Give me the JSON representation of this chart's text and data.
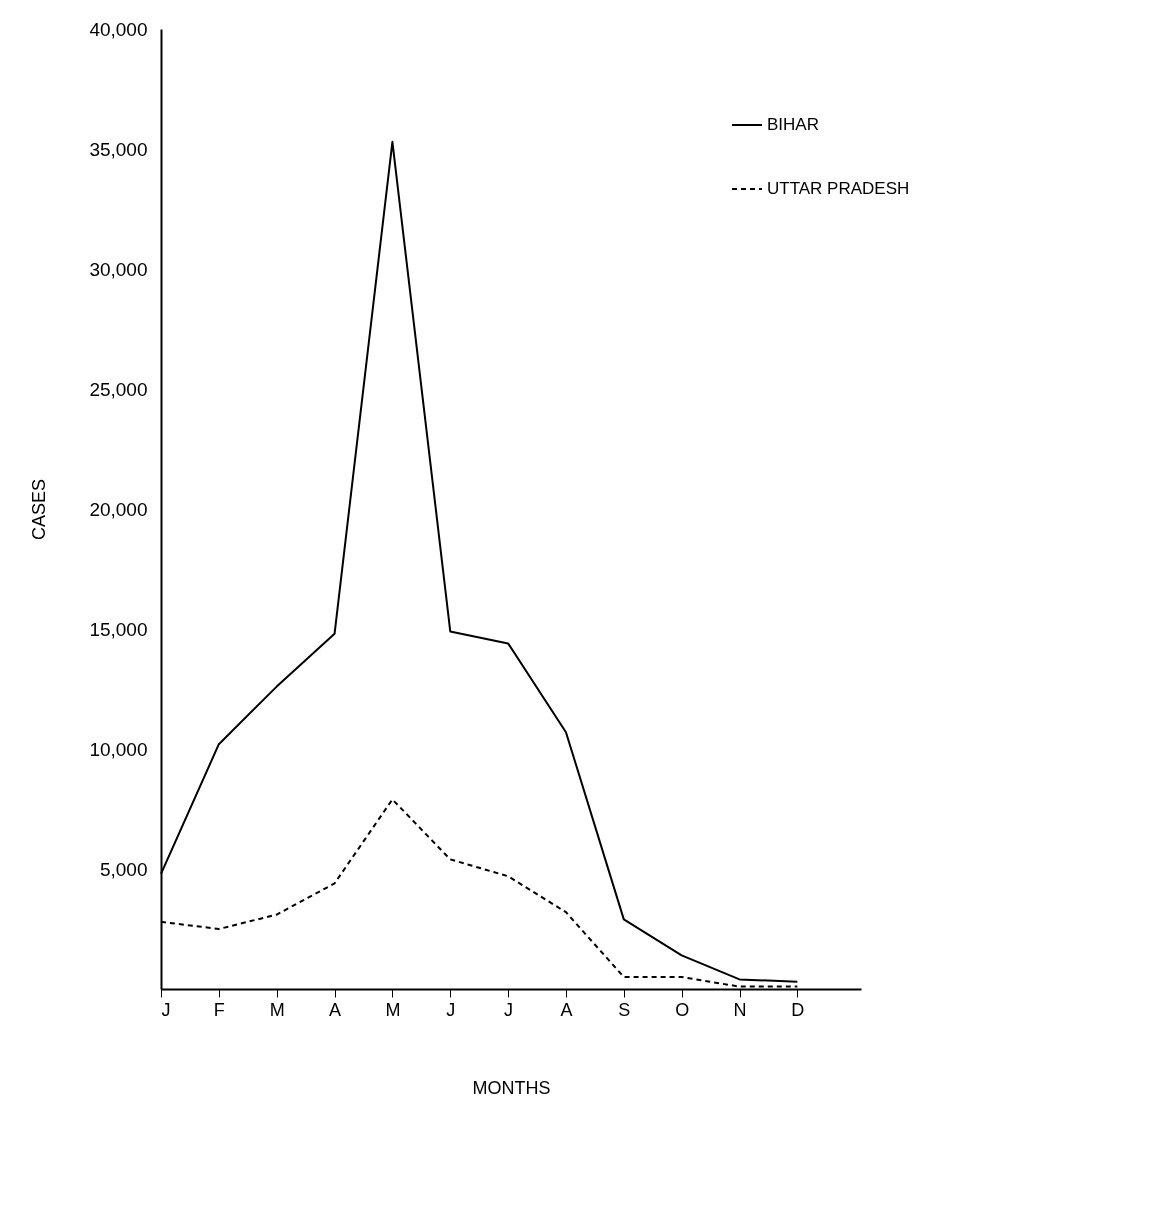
{
  "chart_data": {
    "type": "line",
    "xlabel": "MONTHS",
    "ylabel": "CASES",
    "categories": [
      "J",
      "F",
      "M",
      "A",
      "M",
      "J",
      "J",
      "A",
      "S",
      "O",
      "N",
      "D"
    ],
    "series": [
      {
        "name": "BIHAR",
        "color": "#000000",
        "line_style": "solid",
        "values": [
          4800,
          10200,
          12600,
          14800,
          35300,
          14900,
          14400,
          10700,
          2900,
          1400,
          400,
          300
        ]
      },
      {
        "name": "UTTAR PRADESH",
        "color": "#000000",
        "line_style": "dashed",
        "values": [
          2800,
          2500,
          3100,
          4400,
          7900,
          5400,
          4700,
          3200,
          500,
          500,
          100,
          100
        ]
      }
    ],
    "ylim": [
      0,
      40000
    ],
    "yticks": [
      {
        "value": 5000,
        "label": "5,000"
      },
      {
        "value": 10000,
        "label": "10,000"
      },
      {
        "value": 15000,
        "label": "15,000"
      },
      {
        "value": 20000,
        "label": "20,000"
      },
      {
        "value": 25000,
        "label": "25,000"
      },
      {
        "value": 30000,
        "label": "30,000"
      },
      {
        "value": 35000,
        "label": "35,000"
      },
      {
        "value": 40000,
        "label": "40,000"
      }
    ],
    "grid": false,
    "legend": "top right",
    "marker": "none"
  }
}
